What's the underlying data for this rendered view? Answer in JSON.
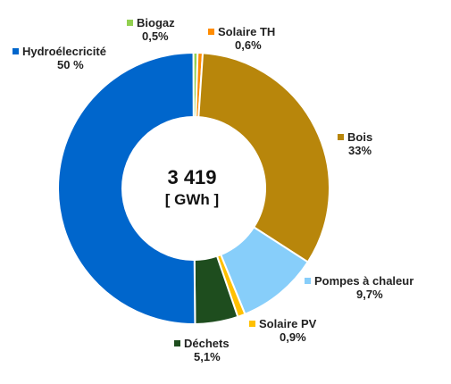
{
  "chart_data": {
    "type": "pie",
    "center_total": "3 419",
    "center_unit": "[ GWh ]",
    "slices": [
      {
        "name": "Biogaz",
        "label": "0,5%",
        "value": 0.5,
        "color": "#92D050"
      },
      {
        "name": "Solaire TH",
        "label": "0,6%",
        "value": 0.6,
        "color": "#FF8C00"
      },
      {
        "name": "Bois",
        "label": "33%",
        "value": 33,
        "color": "#B8860B"
      },
      {
        "name": "Pompes à chaleur",
        "label": "9,7%",
        "value": 9.7,
        "color": "#87CEFA"
      },
      {
        "name": "Solaire PV",
        "label": "0,9%",
        "value": 0.9,
        "color": "#FFC000"
      },
      {
        "name": "Déchets",
        "label": "5,1%",
        "value": 5.1,
        "color": "#1E4D1E"
      },
      {
        "name": "Hydroélecricité",
        "label": "50 %",
        "value": 50,
        "color": "#0066CC"
      }
    ]
  }
}
